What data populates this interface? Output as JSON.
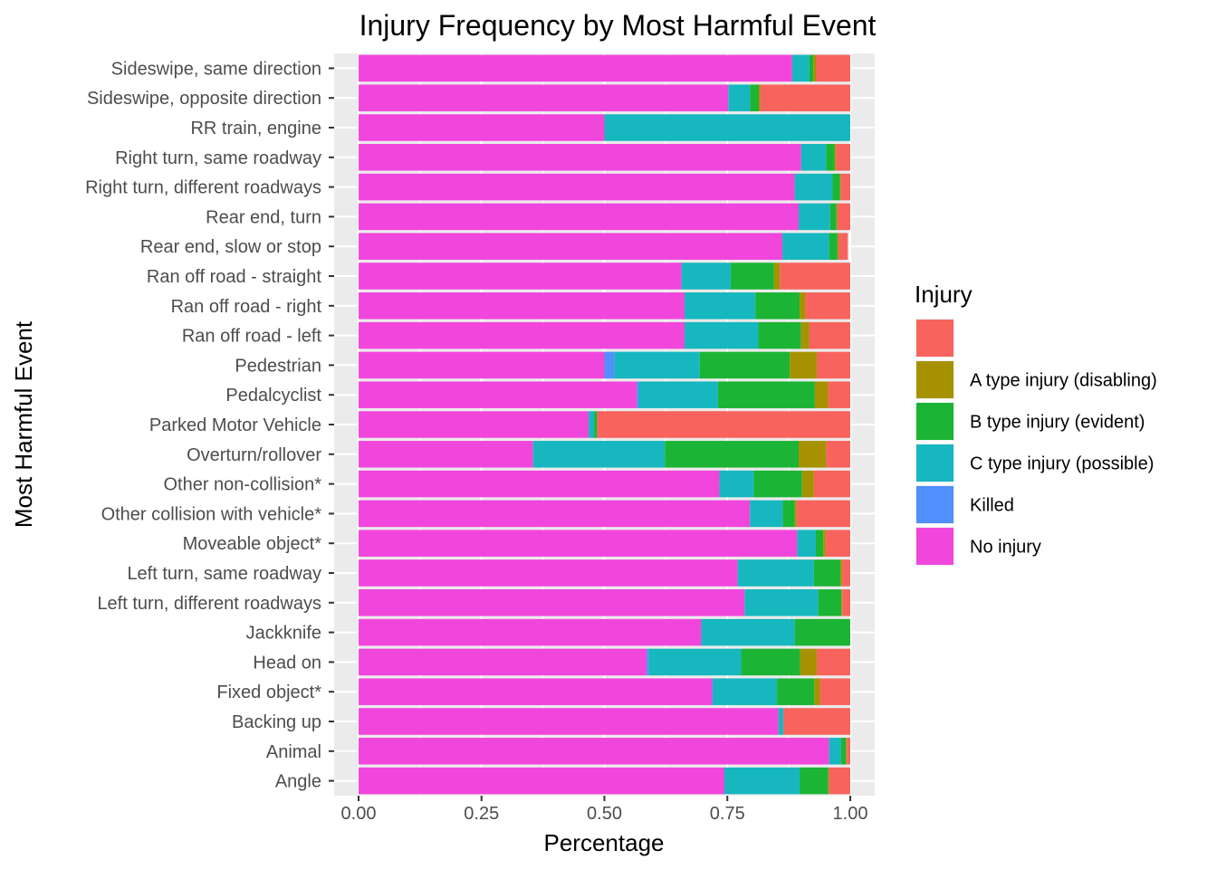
{
  "chart_data": {
    "type": "bar",
    "orientation": "horizontal",
    "stacked": true,
    "title": "Injury Frequency by Most Harmful Event",
    "xlabel": "Percentage",
    "ylabel": "Most Harmful Event",
    "xlim": [
      0,
      1
    ],
    "x_ticks": [
      "0.00",
      "0.25",
      "0.50",
      "0.75",
      "1.00"
    ],
    "grid": true,
    "legend_position": "right",
    "legend_title": "Injury",
    "categories": [
      "Sideswipe, same direction",
      "Sideswipe, opposite direction",
      "RR train, engine",
      "Right turn, same roadway",
      "Right turn, different roadways",
      "Rear end, turn",
      "Rear end, slow or stop",
      "Ran off road - straight",
      "Ran off road - right",
      "Ran off road - left",
      "Pedestrian",
      "Pedalcyclist",
      "Parked Motor Vehicle",
      "Overturn/rollover",
      "Other non-collision*",
      "Other collision with vehicle*",
      "Moveable object*",
      "Left turn, same roadway",
      "Left turn, different roadways",
      "Jackknife",
      "Head on",
      "Fixed object*",
      "Backing up",
      "Animal",
      "Angle"
    ],
    "series": [
      {
        "name": "No injury",
        "color": "#F146DC",
        "values": [
          0.882,
          0.752,
          0.5,
          0.9,
          0.887,
          0.895,
          0.862,
          0.657,
          0.663,
          0.663,
          0.5,
          0.566,
          0.468,
          0.355,
          0.734,
          0.796,
          0.892,
          0.771,
          0.785,
          0.697,
          0.586,
          0.719,
          0.854,
          0.957,
          0.744
        ]
      },
      {
        "name": "Killed",
        "color": "#518FFF",
        "values": [
          0,
          0,
          0,
          0,
          0,
          0,
          0,
          0,
          0,
          0,
          0.02,
          0.003,
          0,
          0,
          0,
          0,
          0,
          0,
          0,
          0,
          0.004,
          0.002,
          0,
          0,
          0
        ]
      },
      {
        "name": "C type injury (possible)",
        "color": "#17B7BF",
        "values": [
          0.035,
          0.044,
          0.5,
          0.051,
          0.077,
          0.064,
          0.095,
          0.1,
          0.144,
          0.15,
          0.174,
          0.162,
          0.011,
          0.268,
          0.07,
          0.067,
          0.038,
          0.155,
          0.15,
          0.19,
          0.188,
          0.13,
          0.01,
          0.024,
          0.153
        ]
      },
      {
        "name": "B type injury (evident)",
        "color": "#1CB434",
        "values": [
          0.008,
          0.018,
          0,
          0.017,
          0.015,
          0.013,
          0.017,
          0.088,
          0.09,
          0.087,
          0.183,
          0.197,
          0.006,
          0.272,
          0.098,
          0.024,
          0.015,
          0.054,
          0.047,
          0.113,
          0.12,
          0.076,
          0,
          0.01,
          0.058
        ]
      },
      {
        "name": "A type injury (disabling)",
        "color": "#A69200",
        "values": [
          0.005,
          0.003,
          0,
          0.003,
          0.002,
          0.002,
          0.002,
          0.012,
          0.012,
          0.017,
          0.055,
          0.027,
          0,
          0.056,
          0.024,
          0.004,
          0.005,
          0.004,
          0.002,
          0,
          0.034,
          0.012,
          0,
          0.002,
          0.002
        ]
      },
      {
        "name": "",
        "color": "#F8635E",
        "values": [
          0.07,
          0.183,
          0,
          0.029,
          0.019,
          0.026,
          0.019,
          0.143,
          0.091,
          0.083,
          0.068,
          0.045,
          0.515,
          0.049,
          0.074,
          0.109,
          0.05,
          0.016,
          0.016,
          0,
          0.068,
          0.061,
          0.136,
          0.007,
          0.043
        ]
      }
    ],
    "legend_order": [
      "",
      "A type injury (disabling)",
      "B type injury (evident)",
      "C type injury (possible)",
      "Killed",
      "No injury"
    ]
  }
}
